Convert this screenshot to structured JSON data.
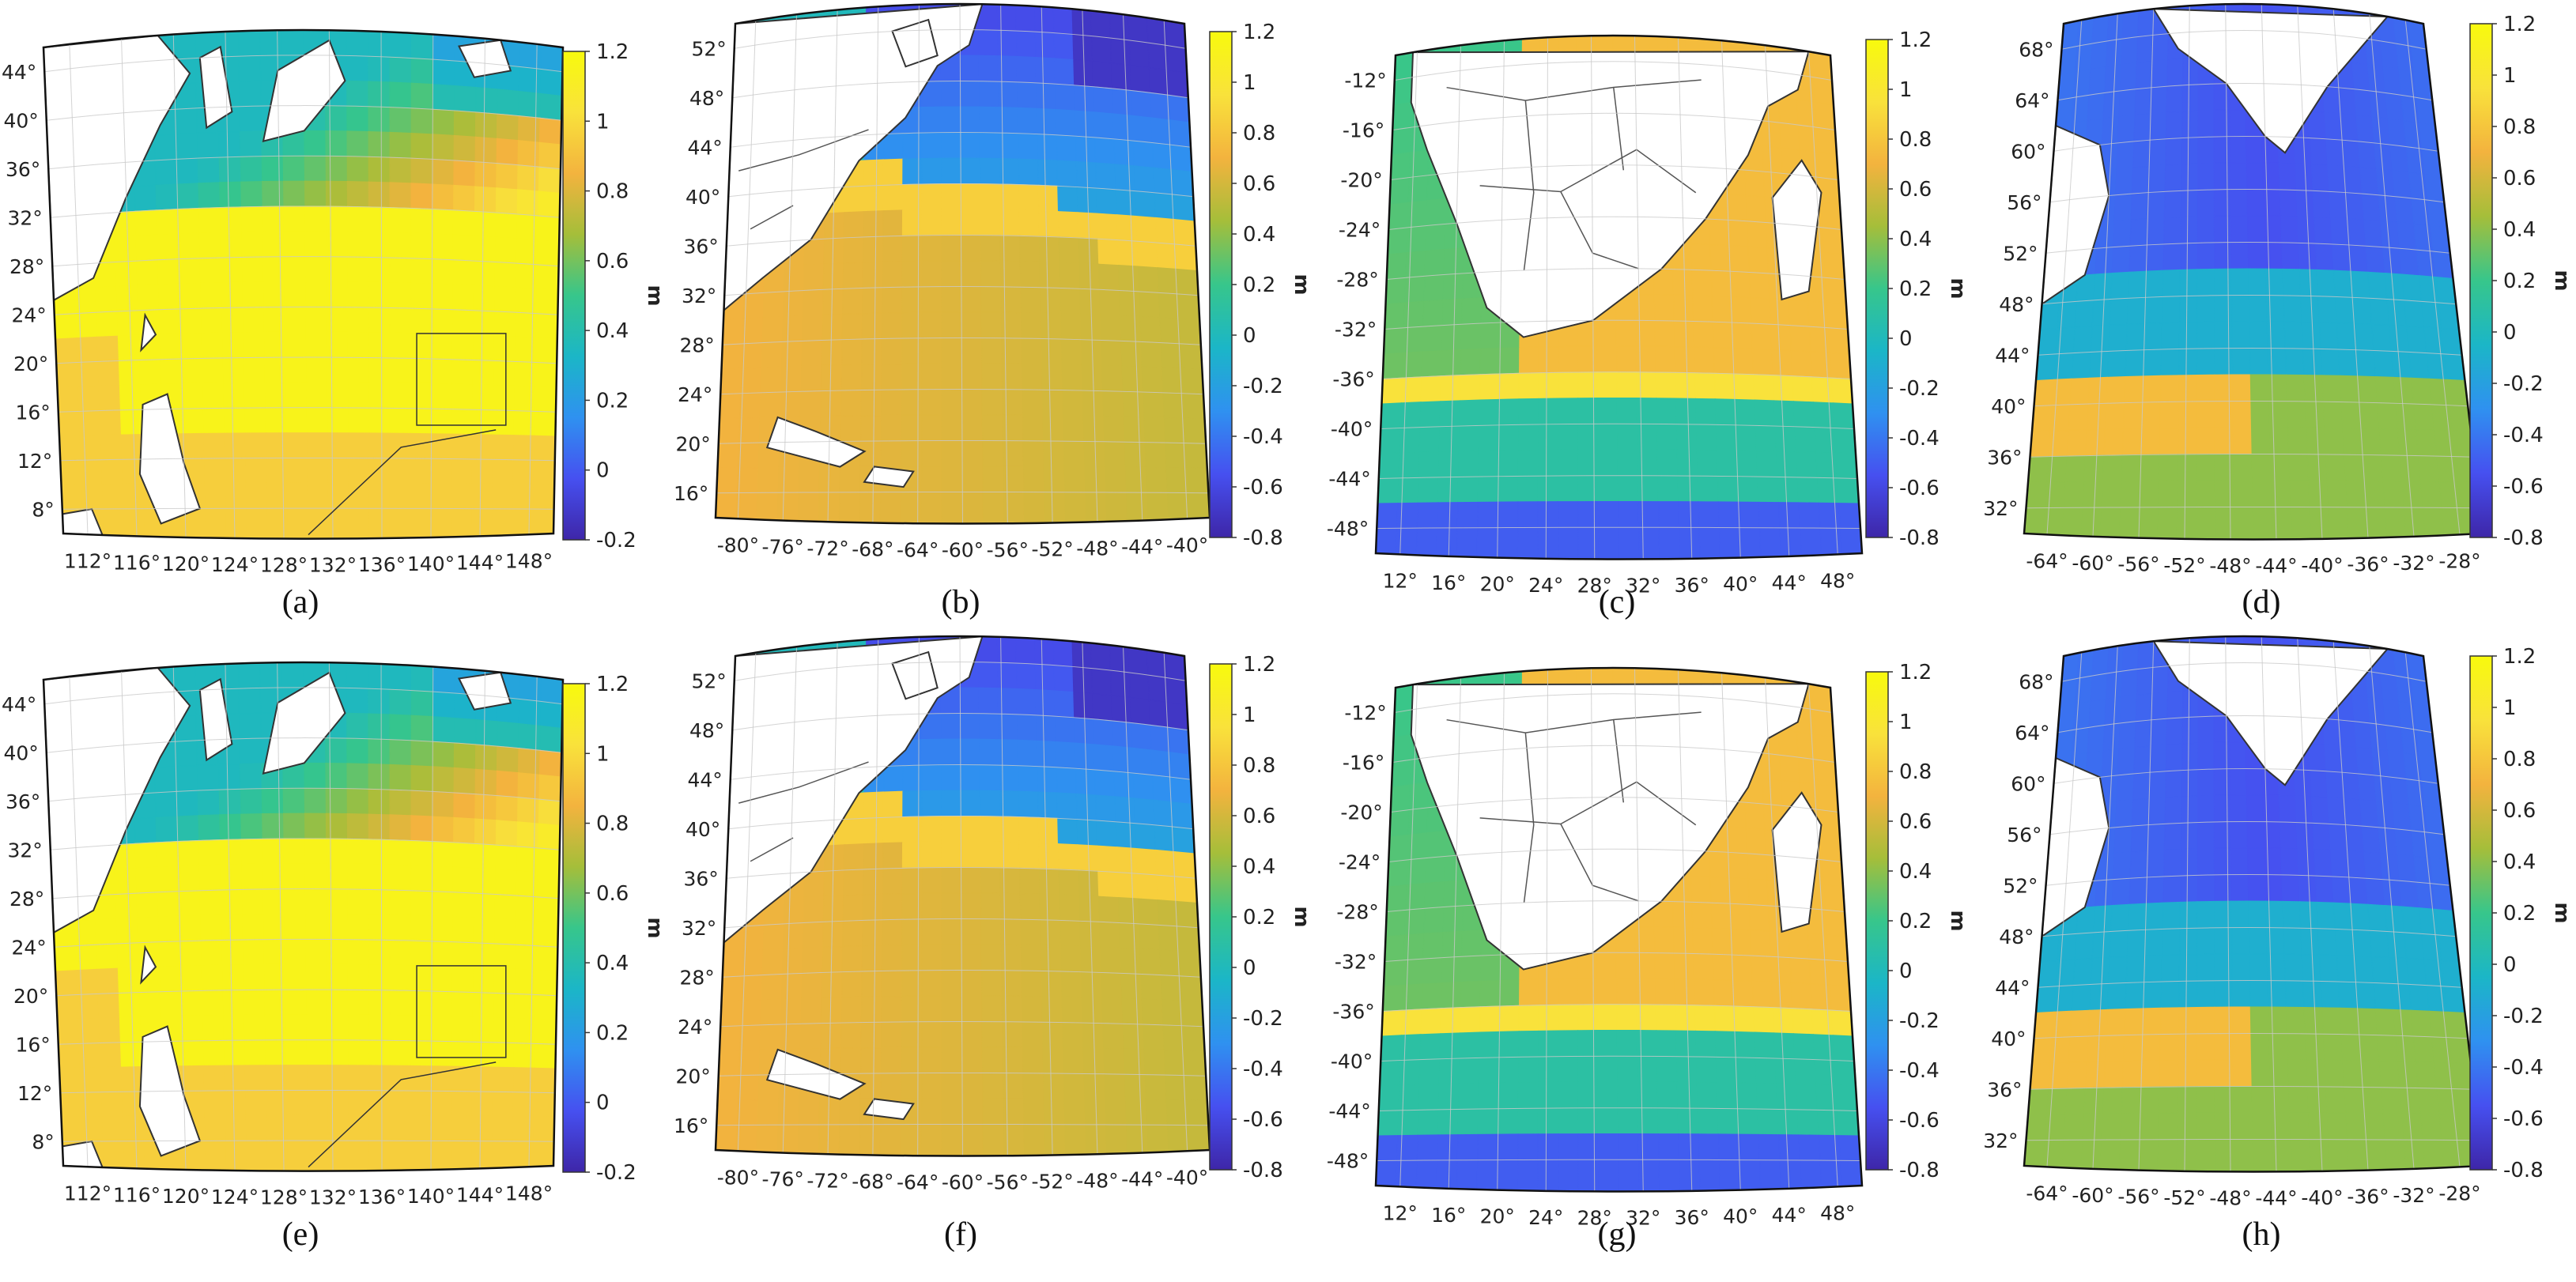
{
  "colors": {
    "land": "#ffffff",
    "border": "#333333",
    "grid": "#c9c9c9",
    "colormap": [
      "#3e26a8",
      "#4650f0",
      "#2f91f0",
      "#1bb6c7",
      "#37c68b",
      "#a5be3a",
      "#f3b33e",
      "#f9e23b",
      "#f8fa0d"
    ]
  },
  "panels": [
    {
      "label": "(a)",
      "region": "northwest-pacific",
      "lat_ticks": [
        "44°",
        "40°",
        "36°",
        "32°",
        "28°",
        "24°",
        "20°",
        "16°",
        "12°",
        "8°"
      ],
      "lon_ticks": [
        "112°",
        "116°",
        "120°",
        "124°",
        "128°",
        "132°",
        "136°",
        "140°",
        "144°",
        "148°"
      ],
      "colorbar": {
        "ticks": [
          "1.2",
          "1",
          "0.8",
          "0.6",
          "0.4",
          "0.2",
          "0",
          "-0.2"
        ],
        "min": -0.2,
        "max": 1.2,
        "unit": "m"
      }
    },
    {
      "label": "(b)",
      "region": "northwest-atlantic",
      "lat_ticks": [
        "52°",
        "48°",
        "44°",
        "40°",
        "36°",
        "32°",
        "28°",
        "24°",
        "20°",
        "16°"
      ],
      "lon_ticks": [
        "-80°",
        "-76°",
        "-72°",
        "-68°",
        "-64°",
        "-60°",
        "-56°",
        "-52°",
        "-48°",
        "-44°",
        "-40°"
      ],
      "colorbar": {
        "ticks": [
          "1.2",
          "1",
          "0.8",
          "0.6",
          "0.4",
          "0.2",
          "0",
          "-0.2",
          "-0.4",
          "-0.6",
          "-0.8"
        ],
        "min": -0.8,
        "max": 1.2,
        "unit": "m"
      }
    },
    {
      "label": "(c)",
      "region": "southern-africa",
      "lat_ticks": [
        "-12°",
        "-16°",
        "-20°",
        "-24°",
        "-28°",
        "-32°",
        "-36°",
        "-40°",
        "-44°",
        "-48°"
      ],
      "lon_ticks": [
        "12°",
        "16°",
        "20°",
        "24°",
        "28°",
        "32°",
        "36°",
        "40°",
        "44°",
        "48°"
      ],
      "colorbar": {
        "ticks": [
          "1.2",
          "1",
          "0.8",
          "0.6",
          "0.4",
          "0.2",
          "0",
          "-0.2",
          "-0.4",
          "-0.6",
          "-0.8"
        ],
        "min": -0.8,
        "max": 1.2,
        "unit": "m"
      }
    },
    {
      "label": "(d)",
      "region": "north-atlantic-greenland",
      "lat_ticks": [
        "68°",
        "64°",
        "60°",
        "56°",
        "52°",
        "48°",
        "44°",
        "40°",
        "36°",
        "32°"
      ],
      "lon_ticks": [
        "-64°",
        "-60°",
        "-56°",
        "-52°",
        "-48°",
        "-44°",
        "-40°",
        "-36°",
        "-32°",
        "-28°"
      ],
      "colorbar": {
        "ticks": [
          "1.2",
          "1",
          "0.8",
          "0.6",
          "0.4",
          "0.2",
          "0",
          "-0.2",
          "-0.4",
          "-0.6",
          "-0.8"
        ],
        "min": -0.8,
        "max": 1.2,
        "unit": "m"
      }
    },
    {
      "label": "(e)",
      "region": "northwest-pacific",
      "lat_ticks": [
        "44°",
        "40°",
        "36°",
        "32°",
        "28°",
        "24°",
        "20°",
        "16°",
        "12°",
        "8°"
      ],
      "lon_ticks": [
        "112°",
        "116°",
        "120°",
        "124°",
        "128°",
        "132°",
        "136°",
        "140°",
        "144°",
        "148°"
      ],
      "colorbar": {
        "ticks": [
          "1.2",
          "1",
          "0.8",
          "0.6",
          "0.4",
          "0.2",
          "0",
          "-0.2"
        ],
        "min": -0.2,
        "max": 1.2,
        "unit": "m"
      }
    },
    {
      "label": "(f)",
      "region": "northwest-atlantic",
      "lat_ticks": [
        "52°",
        "48°",
        "44°",
        "40°",
        "36°",
        "32°",
        "28°",
        "24°",
        "20°",
        "16°"
      ],
      "lon_ticks": [
        "-80°",
        "-76°",
        "-72°",
        "-68°",
        "-64°",
        "-60°",
        "-56°",
        "-52°",
        "-48°",
        "-44°",
        "-40°"
      ],
      "colorbar": {
        "ticks": [
          "1.2",
          "1",
          "0.8",
          "0.6",
          "0.4",
          "0.2",
          "0",
          "-0.2",
          "-0.4",
          "-0.6",
          "-0.8"
        ],
        "min": -0.8,
        "max": 1.2,
        "unit": "m"
      }
    },
    {
      "label": "(g)",
      "region": "southern-africa",
      "lat_ticks": [
        "-12°",
        "-16°",
        "-20°",
        "-24°",
        "-28°",
        "-32°",
        "-36°",
        "-40°",
        "-44°",
        "-48°"
      ],
      "lon_ticks": [
        "12°",
        "16°",
        "20°",
        "24°",
        "28°",
        "32°",
        "36°",
        "40°",
        "44°",
        "48°"
      ],
      "colorbar": {
        "ticks": [
          "1.2",
          "1",
          "0.8",
          "0.6",
          "0.4",
          "0.2",
          "0",
          "-0.2",
          "-0.4",
          "-0.6",
          "-0.8"
        ],
        "min": -0.8,
        "max": 1.2,
        "unit": "m"
      }
    },
    {
      "label": "(h)",
      "region": "north-atlantic-greenland",
      "lat_ticks": [
        "68°",
        "64°",
        "60°",
        "56°",
        "52°",
        "48°",
        "44°",
        "40°",
        "36°",
        "32°"
      ],
      "lon_ticks": [
        "-64°",
        "-60°",
        "-56°",
        "-52°",
        "-48°",
        "-44°",
        "-40°",
        "-36°",
        "-32°",
        "-28°"
      ],
      "colorbar": {
        "ticks": [
          "1.2",
          "1",
          "0.8",
          "0.6",
          "0.4",
          "0.2",
          "0",
          "-0.2",
          "-0.4",
          "-0.6",
          "-0.8"
        ],
        "min": -0.8,
        "max": 1.2,
        "unit": "m"
      }
    }
  ]
}
